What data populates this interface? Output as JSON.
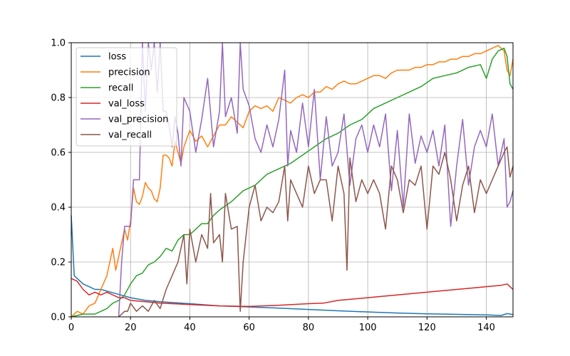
{
  "chart_data": {
    "type": "line",
    "xlim": [
      0,
      149
    ],
    "ylim": [
      0,
      1.0
    ],
    "grid": true,
    "legend_placement": "upper-left",
    "xticks": [
      0,
      20,
      40,
      60,
      80,
      100,
      120,
      140
    ],
    "yticks": [
      0.0,
      0.2,
      0.4,
      0.6,
      0.8,
      1.0
    ],
    "xtick_labels": [
      "0",
      "20",
      "40",
      "60",
      "80",
      "100",
      "120",
      "140"
    ],
    "ytick_labels": [
      "0.0",
      "0.2",
      "0.4",
      "0.6",
      "0.8",
      "1.0"
    ],
    "series": [
      {
        "name": "loss",
        "color": "#1f77b4",
        "x": [
          0,
          1,
          2,
          4,
          6,
          8,
          10,
          15,
          20,
          25,
          30,
          40,
          50,
          60,
          70,
          80,
          90,
          100,
          110,
          120,
          130,
          140,
          145,
          147,
          149
        ],
        "y": [
          0.37,
          0.15,
          0.14,
          0.12,
          0.11,
          0.1,
          0.1,
          0.085,
          0.07,
          0.06,
          0.055,
          0.048,
          0.04,
          0.036,
          0.032,
          0.027,
          0.022,
          0.018,
          0.014,
          0.011,
          0.009,
          0.007,
          0.005,
          0.012,
          0.008
        ]
      },
      {
        "name": "precision",
        "color": "#ff7f0e",
        "x": [
          0,
          2,
          4,
          6,
          8,
          10,
          12,
          14,
          15,
          16,
          18,
          19,
          20,
          21,
          22,
          23,
          24,
          25,
          26,
          27,
          28,
          29,
          30,
          31,
          32,
          33,
          34,
          35,
          36,
          37,
          38,
          40,
          42,
          44,
          46,
          48,
          50,
          52,
          54,
          56,
          58,
          60,
          62,
          64,
          66,
          68,
          70,
          72,
          74,
          76,
          78,
          80,
          82,
          84,
          86,
          88,
          90,
          92,
          94,
          96,
          98,
          100,
          102,
          104,
          106,
          108,
          110,
          112,
          114,
          116,
          118,
          120,
          122,
          124,
          126,
          128,
          130,
          132,
          134,
          136,
          138,
          140,
          142,
          144,
          146,
          147,
          148,
          149
        ],
        "y": [
          0.0,
          0.02,
          0.01,
          0.04,
          0.05,
          0.1,
          0.15,
          0.25,
          0.17,
          0.22,
          0.32,
          0.28,
          0.35,
          0.47,
          0.42,
          0.41,
          0.44,
          0.49,
          0.47,
          0.46,
          0.43,
          0.42,
          0.47,
          0.59,
          0.59,
          0.58,
          0.55,
          0.64,
          0.6,
          0.56,
          0.62,
          0.68,
          0.64,
          0.66,
          0.62,
          0.66,
          0.7,
          0.7,
          0.73,
          0.71,
          0.69,
          0.75,
          0.77,
          0.76,
          0.77,
          0.75,
          0.8,
          0.79,
          0.78,
          0.8,
          0.81,
          0.8,
          0.82,
          0.82,
          0.84,
          0.83,
          0.85,
          0.86,
          0.85,
          0.85,
          0.86,
          0.87,
          0.88,
          0.88,
          0.87,
          0.89,
          0.9,
          0.9,
          0.9,
          0.91,
          0.91,
          0.92,
          0.92,
          0.93,
          0.93,
          0.94,
          0.94,
          0.95,
          0.95,
          0.96,
          0.96,
          0.97,
          0.98,
          0.99,
          0.97,
          0.9,
          0.88,
          0.94
        ]
      },
      {
        "name": "recall",
        "color": "#2ca02c",
        "x": [
          0,
          4,
          8,
          12,
          14,
          16,
          18,
          20,
          22,
          24,
          26,
          28,
          30,
          32,
          34,
          36,
          38,
          40,
          42,
          44,
          46,
          48,
          50,
          54,
          58,
          62,
          66,
          70,
          74,
          78,
          82,
          86,
          90,
          94,
          98,
          102,
          106,
          110,
          114,
          118,
          122,
          126,
          130,
          134,
          138,
          140,
          142,
          144,
          146,
          147,
          148,
          149
        ],
        "y": [
          0.0,
          0.01,
          0.01,
          0.03,
          0.05,
          0.06,
          0.08,
          0.12,
          0.15,
          0.16,
          0.19,
          0.2,
          0.22,
          0.25,
          0.24,
          0.28,
          0.3,
          0.3,
          0.32,
          0.34,
          0.34,
          0.37,
          0.39,
          0.42,
          0.46,
          0.48,
          0.52,
          0.54,
          0.56,
          0.59,
          0.62,
          0.65,
          0.67,
          0.7,
          0.72,
          0.76,
          0.78,
          0.8,
          0.82,
          0.84,
          0.87,
          0.88,
          0.89,
          0.91,
          0.92,
          0.87,
          0.94,
          0.97,
          0.98,
          0.95,
          0.85,
          0.83
        ]
      },
      {
        "name": "val_loss",
        "color": "#d62728",
        "x": [
          0,
          2,
          4,
          6,
          8,
          10,
          12,
          14,
          16,
          18,
          20,
          25,
          30,
          40,
          50,
          60,
          70,
          80,
          85,
          90,
          95,
          100,
          105,
          110,
          115,
          120,
          125,
          130,
          135,
          140,
          145,
          147,
          149
        ],
        "y": [
          0.14,
          0.13,
          0.1,
          0.08,
          0.09,
          0.08,
          0.09,
          0.08,
          0.07,
          0.07,
          0.06,
          0.055,
          0.05,
          0.045,
          0.04,
          0.038,
          0.042,
          0.048,
          0.05,
          0.06,
          0.065,
          0.07,
          0.075,
          0.08,
          0.085,
          0.09,
          0.095,
          0.1,
          0.105,
          0.11,
          0.115,
          0.12,
          0.1
        ]
      },
      {
        "name": "val_precision",
        "color": "#9467bd",
        "x": [
          16,
          17,
          18,
          19,
          20,
          21,
          22,
          23,
          24,
          25,
          26,
          27,
          28,
          29,
          30,
          31,
          32,
          33,
          34,
          35,
          36,
          37,
          38,
          40,
          42,
          44,
          46,
          48,
          50,
          51,
          52,
          54,
          56,
          57,
          58,
          60,
          62,
          64,
          66,
          68,
          70,
          72,
          73,
          74,
          76,
          78,
          80,
          82,
          84,
          86,
          88,
          90,
          92,
          94,
          96,
          98,
          100,
          102,
          104,
          106,
          108,
          110,
          112,
          114,
          116,
          118,
          120,
          122,
          124,
          126,
          128,
          130,
          132,
          134,
          136,
          138,
          140,
          142,
          144,
          146,
          147,
          148,
          149
        ],
        "y": [
          0.0,
          0.2,
          0.33,
          0.33,
          0.33,
          0.5,
          0.5,
          0.5,
          1.0,
          0.75,
          1.0,
          0.9,
          1.0,
          0.82,
          1.0,
          0.75,
          0.75,
          0.7,
          0.62,
          0.73,
          0.67,
          0.55,
          0.8,
          0.75,
          0.6,
          0.72,
          0.87,
          0.62,
          0.75,
          1.0,
          0.73,
          0.8,
          0.67,
          1.0,
          0.83,
          0.77,
          0.65,
          0.6,
          0.7,
          0.62,
          0.72,
          0.9,
          0.55,
          0.68,
          0.6,
          0.78,
          0.62,
          0.83,
          0.5,
          0.73,
          0.55,
          0.6,
          0.74,
          0.48,
          0.65,
          0.7,
          0.6,
          0.7,
          0.62,
          0.74,
          0.46,
          0.68,
          0.4,
          0.74,
          0.56,
          0.66,
          0.6,
          0.68,
          0.55,
          0.7,
          0.33,
          0.55,
          0.72,
          0.48,
          0.62,
          0.68,
          0.62,
          0.74,
          0.55,
          0.65,
          0.4,
          0.42,
          0.46
        ]
      },
      {
        "name": "val_recall",
        "color": "#8c564b",
        "x": [
          16,
          18,
          19,
          20,
          22,
          24,
          26,
          28,
          30,
          32,
          34,
          36,
          38,
          39,
          40,
          42,
          44,
          46,
          47,
          48,
          50,
          51,
          52,
          54,
          56,
          57,
          58,
          60,
          62,
          64,
          66,
          68,
          70,
          72,
          73,
          74,
          76,
          78,
          80,
          82,
          84,
          86,
          88,
          90,
          92,
          93,
          94,
          96,
          98,
          100,
          102,
          104,
          106,
          108,
          110,
          112,
          114,
          116,
          118,
          120,
          122,
          124,
          126,
          128,
          130,
          132,
          134,
          136,
          138,
          140,
          142,
          144,
          146,
          147,
          148,
          149
        ],
        "y": [
          0.0,
          0.02,
          0.02,
          0.05,
          0.02,
          0.04,
          0.02,
          0.06,
          0.03,
          0.1,
          0.15,
          0.2,
          0.3,
          0.12,
          0.32,
          0.2,
          0.3,
          0.25,
          0.45,
          0.27,
          0.3,
          0.2,
          0.45,
          0.32,
          0.33,
          0.02,
          0.2,
          0.4,
          0.48,
          0.35,
          0.4,
          0.38,
          0.42,
          0.55,
          0.35,
          0.5,
          0.45,
          0.4,
          0.55,
          0.45,
          0.5,
          0.5,
          0.35,
          0.55,
          0.45,
          0.17,
          0.58,
          0.42,
          0.5,
          0.45,
          0.5,
          0.45,
          0.32,
          0.55,
          0.5,
          0.38,
          0.5,
          0.48,
          0.55,
          0.32,
          0.55,
          0.52,
          0.6,
          0.5,
          0.35,
          0.48,
          0.55,
          0.38,
          0.5,
          0.45,
          0.5,
          0.55,
          0.6,
          0.62,
          0.51,
          0.55
        ]
      }
    ]
  }
}
